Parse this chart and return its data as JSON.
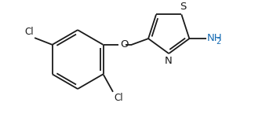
{
  "bg_color": "#ffffff",
  "line_color": "#1a1a1a",
  "atom_colors": {
    "Cl": "#1a1a1a",
    "O": "#1a1a1a",
    "N": "#1a1a1a",
    "S": "#1a1a1a",
    "NH2": "#1a6eb5",
    "sub2": "#1a6eb5"
  },
  "figsize": [
    3.48,
    1.45
  ],
  "dpi": 100,
  "lw": 1.3
}
